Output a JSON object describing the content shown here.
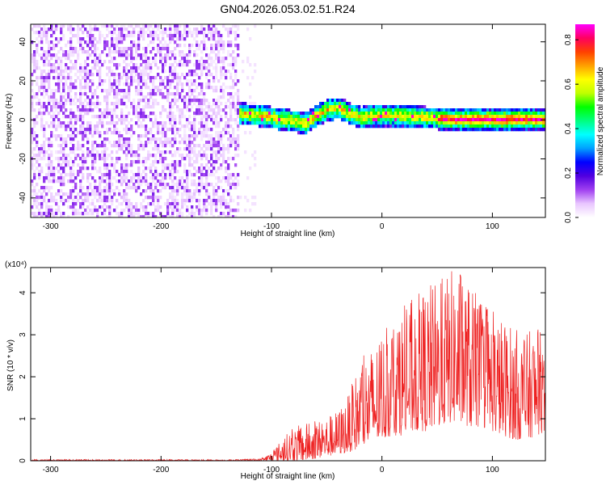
{
  "figure": {
    "title": "GN04.2026.053.02.51.R24"
  },
  "chart_data": [
    {
      "type": "heatmap",
      "title": "GN04.2026.053.02.51.R24",
      "xlabel": "Height of straight line (km)",
      "ylabel": "Frequency (Hz)",
      "xlim": [
        -318,
        148
      ],
      "ylim": [
        -50,
        49
      ],
      "xticks": [
        -300,
        -200,
        -100,
        0,
        100
      ],
      "yticks": [
        -40,
        -20,
        0,
        20,
        40
      ],
      "grid": false,
      "noise_region_x": [
        -318,
        -130
      ],
      "signal_region_x": [
        -130,
        148
      ],
      "ridge_center": {
        "x": [
          -130,
          -110,
          -90,
          -70,
          -60,
          -50,
          -40,
          -30,
          -20,
          -10,
          0,
          20,
          40,
          60,
          80,
          100,
          120,
          148
        ],
        "y": [
          4,
          3,
          1,
          -1,
          3,
          6,
          7,
          4,
          2,
          3,
          3,
          3,
          2,
          1,
          1,
          1,
          1,
          1
        ]
      },
      "ridge_half_width_hz": 4,
      "colorbar": {
        "label": "Normalized spectral amplitude",
        "range": [
          0.0,
          0.87
        ],
        "ticks": [
          0.0,
          0.2,
          0.4,
          0.6,
          0.8
        ],
        "colors": [
          "#ffffff",
          "#e9c6ff",
          "#a040f0",
          "#5000e0",
          "#0000ff",
          "#00a0ff",
          "#00ffff",
          "#00ff80",
          "#00ff00",
          "#c0ff00",
          "#ffff00",
          "#ffa000",
          "#ff4000",
          "#ff0060",
          "#ff00ff"
        ]
      }
    },
    {
      "type": "line",
      "xlabel": "Height of straight line (km)",
      "ylabel": "SNR (10 * v/v)",
      "y_scale_label": "(x10⁴)",
      "xlim": [
        -318,
        148
      ],
      "ylim": [
        0,
        4.6
      ],
      "xticks": [
        -300,
        -200,
        -100,
        0,
        100
      ],
      "yticks": [
        0,
        1,
        2,
        3,
        4
      ],
      "grid": false,
      "series": [
        {
          "color": "#ee2222",
          "envelope": {
            "x": [
              -318,
              -130,
              -110,
              -100,
              -90,
              -80,
              -70,
              -60,
              -50,
              -40,
              -30,
              -20,
              -10,
              0,
              10,
              20,
              30,
              40,
              50,
              60,
              70,
              80,
              90,
              100,
              110,
              120,
              130,
              140,
              148
            ],
            "max": [
              0.03,
              0.03,
              0.05,
              0.2,
              0.55,
              0.8,
              0.9,
              0.95,
              1.05,
              1.2,
              1.6,
              2.4,
              2.7,
              3.0,
              3.4,
              3.7,
              3.9,
              4.2,
              4.3,
              4.5,
              4.7,
              4.2,
              3.8,
              3.6,
              3.4,
              3.2,
              3.0,
              3.3,
              2.8
            ],
            "min": [
              0.0,
              0.0,
              0.0,
              0.0,
              0.0,
              0.0,
              0.0,
              0.05,
              0.1,
              0.15,
              0.2,
              0.3,
              0.4,
              0.5,
              0.6,
              0.6,
              0.7,
              0.7,
              0.8,
              0.9,
              0.9,
              0.8,
              0.8,
              0.7,
              0.6,
              0.5,
              0.5,
              0.6,
              0.7
            ]
          }
        }
      ]
    }
  ]
}
